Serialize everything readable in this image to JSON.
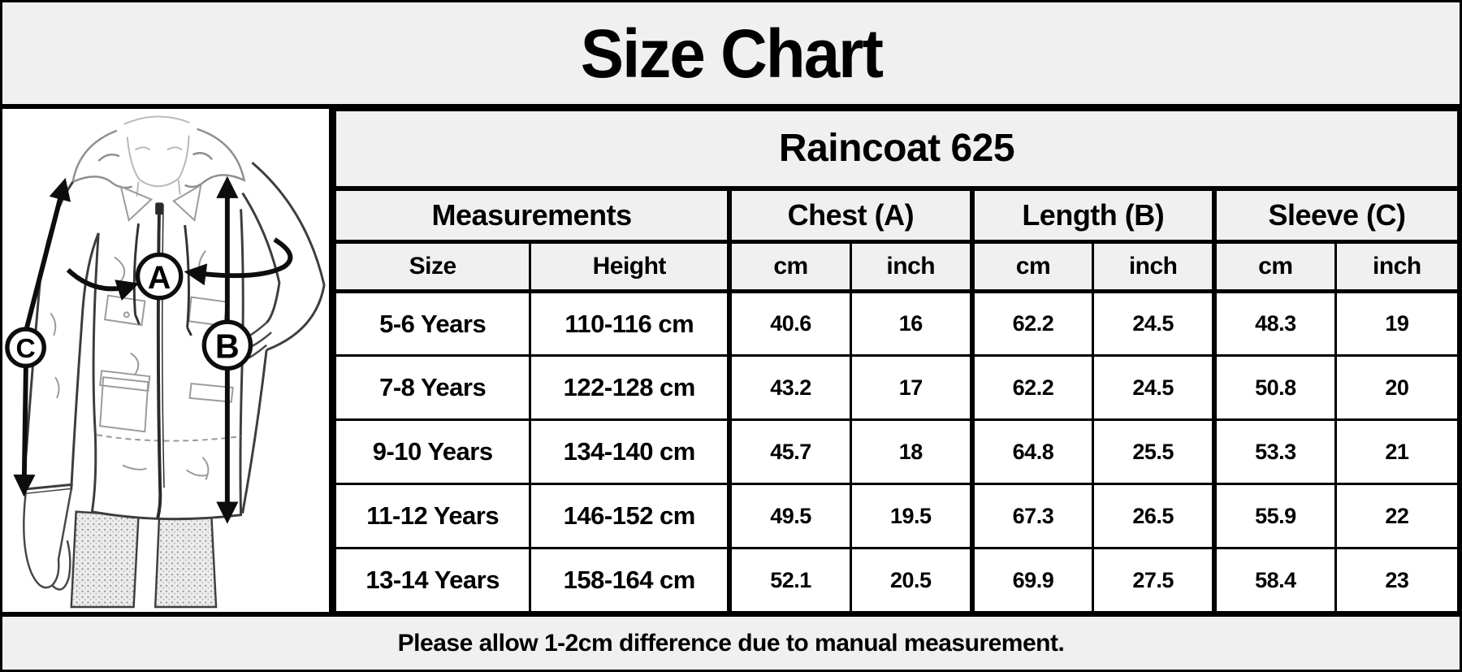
{
  "title": "Size Chart",
  "footer_note": "Please allow 1-2cm difference due to manual measurement.",
  "diagram": {
    "labels": [
      "A",
      "B",
      "C"
    ]
  },
  "colors": {
    "header_bg": "#f0f0f0",
    "border": "#000000",
    "text": "#000000",
    "background": "#ffffff"
  },
  "chart_data": {
    "type": "table",
    "title": "Raincoat 625",
    "group_headers": [
      {
        "label": "Measurements",
        "span": 2
      },
      {
        "label": "Chest (A)",
        "span": 2
      },
      {
        "label": "Length (B)",
        "span": 2
      },
      {
        "label": "Sleeve (C)",
        "span": 2
      }
    ],
    "columns": [
      "Size",
      "Height",
      "cm",
      "inch",
      "cm",
      "inch",
      "cm",
      "inch"
    ],
    "rows": [
      [
        "5-6 Years",
        "110-116 cm",
        "40.6",
        "16",
        "62.2",
        "24.5",
        "48.3",
        "19"
      ],
      [
        "7-8 Years",
        "122-128 cm",
        "43.2",
        "17",
        "62.2",
        "24.5",
        "50.8",
        "20"
      ],
      [
        "9-10 Years",
        "134-140 cm",
        "45.7",
        "18",
        "64.8",
        "25.5",
        "53.3",
        "21"
      ],
      [
        "11-12 Years",
        "146-152 cm",
        "49.5",
        "19.5",
        "67.3",
        "26.5",
        "55.9",
        "22"
      ],
      [
        "13-14 Years",
        "158-164 cm",
        "52.1",
        "20.5",
        "69.9",
        "27.5",
        "58.4",
        "23"
      ]
    ]
  }
}
